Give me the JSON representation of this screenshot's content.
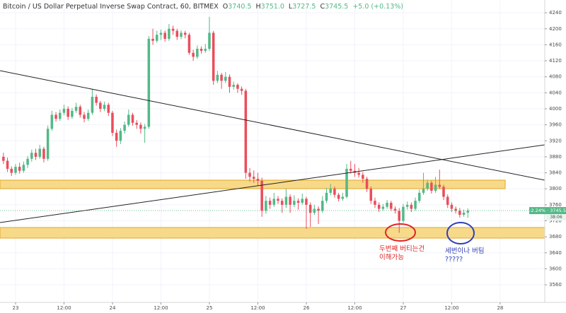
{
  "chart_data": {
    "type": "candlestick",
    "title": "Bitcoin / US Dollar Perpetual Inverse Swap Contract, 60, BITMEX",
    "legend_values": [
      {
        "label": "O",
        "value": "3740.5"
      },
      {
        "label": "H",
        "value": "3751.0"
      },
      {
        "label": "L",
        "value": "3727.5"
      },
      {
        "label": "C",
        "value": "3745.5"
      }
    ],
    "change": "+5.0 (+0.13%)",
    "price_tag": "-2.24% · 3745.5",
    "countdown": "38:06",
    "up_color": "#53b987",
    "down_color": "#eb4d5c",
    "grid": true,
    "xlim": [
      -3.85,
      131.05
    ],
    "xticks": [
      {
        "value": 0,
        "label": "23"
      },
      {
        "value": 12,
        "label": "12:00"
      },
      {
        "value": 24,
        "label": "24"
      },
      {
        "value": 36,
        "label": "12:00"
      },
      {
        "value": 48,
        "label": "25"
      },
      {
        "value": 60,
        "label": "12:00"
      },
      {
        "value": 72,
        "label": "26"
      },
      {
        "value": 84,
        "label": "12:00"
      },
      {
        "value": 96,
        "label": "27"
      },
      {
        "value": 108,
        "label": "12:00"
      },
      {
        "value": 120,
        "label": "28"
      }
    ],
    "ylim": [
      3516,
      4272
    ],
    "yticks": [
      4240,
      4200,
      4160,
      4120,
      4080,
      4040,
      4000,
      3960,
      3920,
      3880,
      3840,
      3800,
      3760,
      3720,
      3680,
      3640,
      3600,
      3560
    ],
    "x": [
      -3,
      -2,
      -1,
      0,
      1,
      2,
      3,
      4,
      5,
      6,
      7,
      8,
      9,
      10,
      11,
      12,
      13,
      14,
      15,
      16,
      17,
      18,
      19,
      20,
      21,
      22,
      23,
      24,
      25,
      26,
      27,
      28,
      29,
      30,
      31,
      32,
      33,
      34,
      35,
      36,
      37,
      38,
      39,
      40,
      41,
      42,
      43,
      44,
      45,
      46,
      47,
      48,
      49,
      50,
      51,
      52,
      53,
      54,
      55,
      56,
      57,
      58,
      59,
      60,
      61,
      62,
      63,
      64,
      65,
      66,
      67,
      68,
      69,
      70,
      71,
      72,
      73,
      74,
      75,
      76,
      77,
      78,
      79,
      80,
      81,
      82,
      83,
      84,
      85,
      86,
      87,
      88,
      89,
      90,
      91,
      92,
      93,
      94,
      95,
      96,
      97,
      98,
      99,
      100,
      101,
      102,
      103,
      104,
      105,
      106,
      107,
      108,
      109,
      110,
      111,
      112
    ],
    "ohlc": [
      [
        3880,
        3890,
        3862,
        3870
      ],
      [
        3870,
        3878,
        3842,
        3850
      ],
      [
        3850,
        3856,
        3832,
        3840
      ],
      [
        3840,
        3862,
        3835,
        3855
      ],
      [
        3855,
        3865,
        3838,
        3845
      ],
      [
        3845,
        3868,
        3840,
        3860
      ],
      [
        3860,
        3882,
        3852,
        3875
      ],
      [
        3875,
        3898,
        3868,
        3890
      ],
      [
        3890,
        3900,
        3872,
        3880
      ],
      [
        3880,
        3910,
        3875,
        3900
      ],
      [
        3900,
        3905,
        3866,
        3875
      ],
      [
        3875,
        3958,
        3870,
        3950
      ],
      [
        3950,
        3995,
        3945,
        3985
      ],
      [
        3985,
        3992,
        3968,
        3975
      ],
      [
        3975,
        3998,
        3970,
        3990
      ],
      [
        3990,
        4010,
        3984,
        4000
      ],
      [
        4000,
        4006,
        3972,
        3980
      ],
      [
        3980,
        4002,
        3975,
        3995
      ],
      [
        3995,
        4015,
        3990,
        4005
      ],
      [
        4005,
        4010,
        3978,
        3985
      ],
      [
        3985,
        3992,
        3966,
        3975
      ],
      [
        3975,
        3998,
        3970,
        3990
      ],
      [
        3990,
        4048,
        3985,
        4030
      ],
      [
        4030,
        4036,
        4008,
        4015
      ],
      [
        4015,
        4020,
        3992,
        4000
      ],
      [
        4000,
        4018,
        3994,
        4010
      ],
      [
        4010,
        4015,
        3982,
        3990
      ],
      [
        3990,
        3995,
        3932,
        3940
      ],
      [
        3940,
        3948,
        3905,
        3920
      ],
      [
        3920,
        3952,
        3912,
        3945
      ],
      [
        3945,
        3968,
        3938,
        3960
      ],
      [
        3960,
        3998,
        3955,
        3985
      ],
      [
        3985,
        3990,
        3958,
        3965
      ],
      [
        3965,
        3972,
        3950,
        3960
      ],
      [
        3960,
        3966,
        3938,
        3950
      ],
      [
        3950,
        3962,
        3915,
        3955
      ],
      [
        3955,
        4182,
        3950,
        4175
      ],
      [
        4175,
        4200,
        4160,
        4170
      ],
      [
        4170,
        4195,
        4165,
        4185
      ],
      [
        4185,
        4198,
        4172,
        4190
      ],
      [
        4190,
        4196,
        4168,
        4175
      ],
      [
        4175,
        4212,
        4170,
        4200
      ],
      [
        4200,
        4208,
        4185,
        4195
      ],
      [
        4195,
        4200,
        4172,
        4180
      ],
      [
        4180,
        4196,
        4174,
        4190
      ],
      [
        4190,
        4195,
        4176,
        4185
      ],
      [
        4185,
        4190,
        4135,
        4140
      ],
      [
        4140,
        4148,
        4120,
        4130
      ],
      [
        4130,
        4158,
        4125,
        4150
      ],
      [
        4150,
        4156,
        4138,
        4145
      ],
      [
        4145,
        4162,
        4140,
        4150
      ],
      [
        4150,
        4230,
        4145,
        4190
      ],
      [
        4190,
        4195,
        4060,
        4070
      ],
      [
        4070,
        4095,
        4064,
        4085
      ],
      [
        4085,
        4090,
        4050,
        4070
      ],
      [
        4070,
        4092,
        4064,
        4080
      ],
      [
        4080,
        4086,
        4040,
        4055
      ],
      [
        4055,
        4068,
        4048,
        4060
      ],
      [
        4060,
        4064,
        4040,
        4050
      ],
      [
        4050,
        4056,
        4035,
        4045
      ],
      [
        4045,
        4050,
        3825,
        3840
      ],
      [
        3840,
        3852,
        3818,
        3830
      ],
      [
        3830,
        3846,
        3815,
        3825
      ],
      [
        3825,
        3840,
        3808,
        3820
      ],
      [
        3820,
        3828,
        3730,
        3745
      ],
      [
        3745,
        3782,
        3738,
        3770
      ],
      [
        3770,
        3778,
        3750,
        3760
      ],
      [
        3760,
        3790,
        3755,
        3775
      ],
      [
        3775,
        3782,
        3762,
        3770
      ],
      [
        3770,
        3776,
        3740,
        3760
      ],
      [
        3760,
        3800,
        3752,
        3780
      ],
      [
        3780,
        3786,
        3740,
        3760
      ],
      [
        3760,
        3784,
        3754,
        3770
      ],
      [
        3770,
        3776,
        3748,
        3765
      ],
      [
        3765,
        3788,
        3760,
        3775
      ],
      [
        3775,
        3780,
        3700,
        3760
      ],
      [
        3760,
        3766,
        3705,
        3740
      ],
      [
        3740,
        3760,
        3735,
        3750
      ],
      [
        3750,
        3756,
        3712,
        3745
      ],
      [
        3745,
        3782,
        3740,
        3770
      ],
      [
        3770,
        3802,
        3764,
        3790
      ],
      [
        3790,
        3812,
        3784,
        3800
      ],
      [
        3800,
        3806,
        3778,
        3785
      ],
      [
        3785,
        3790,
        3768,
        3775
      ],
      [
        3775,
        3790,
        3770,
        3780
      ],
      [
        3780,
        3862,
        3776,
        3850
      ],
      [
        3850,
        3870,
        3838,
        3845
      ],
      [
        3845,
        3862,
        3830,
        3840
      ],
      [
        3840,
        3852,
        3828,
        3835
      ],
      [
        3835,
        3842,
        3815,
        3825
      ],
      [
        3825,
        3830,
        3792,
        3800
      ],
      [
        3800,
        3806,
        3762,
        3770
      ],
      [
        3770,
        3778,
        3752,
        3760
      ],
      [
        3760,
        3766,
        3742,
        3750
      ],
      [
        3750,
        3762,
        3745,
        3755
      ],
      [
        3755,
        3772,
        3750,
        3765
      ],
      [
        3765,
        3770,
        3744,
        3750
      ],
      [
        3750,
        3756,
        3738,
        3745
      ],
      [
        3745,
        3752,
        3690,
        3720
      ],
      [
        3720,
        3762,
        3715,
        3755
      ],
      [
        3755,
        3768,
        3748,
        3760
      ],
      [
        3760,
        3766,
        3742,
        3750
      ],
      [
        3750,
        3778,
        3745,
        3770
      ],
      [
        3770,
        3798,
        3765,
        3790
      ],
      [
        3790,
        3840,
        3785,
        3800
      ],
      [
        3800,
        3822,
        3795,
        3815
      ],
      [
        3815,
        3820,
        3788,
        3795
      ],
      [
        3795,
        3830,
        3790,
        3810
      ],
      [
        3810,
        3848,
        3800,
        3805
      ],
      [
        3805,
        3810,
        3772,
        3780
      ],
      [
        3780,
        3786,
        3752,
        3760
      ],
      [
        3760,
        3766,
        3742,
        3750
      ],
      [
        3750,
        3756,
        3738,
        3745
      ],
      [
        3745,
        3752,
        3728,
        3735
      ],
      [
        3735,
        3748,
        3730,
        3740.5
      ],
      [
        3740.5,
        3751,
        3727.5,
        3745.5
      ]
    ],
    "annotations": [
      {
        "lines": [
          "두번째 버티는건",
          "이해가능"
        ],
        "color": "#e02424"
      },
      {
        "lines": [
          "세번이나 버팀",
          "?????"
        ],
        "color": "#2f3fb8"
      }
    ]
  }
}
